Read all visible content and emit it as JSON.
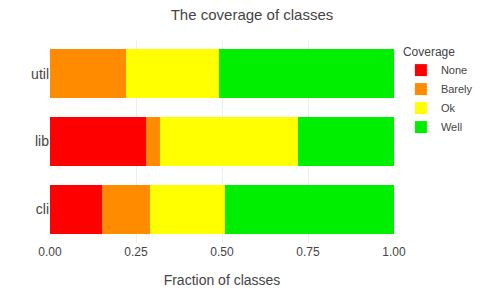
{
  "chart_data": {
    "type": "bar",
    "orientation": "horizontal",
    "stacked": true,
    "title": "The coverage of classes",
    "xlabel": "Fraction of classes",
    "legend_title": "Coverage",
    "categories": [
      "cli",
      "lib",
      "util"
    ],
    "series": [
      {
        "name": "None",
        "color": "#FF0000",
        "values": [
          0.15,
          0.28,
          0.0
        ]
      },
      {
        "name": "Barely",
        "color": "#FF8C00",
        "values": [
          0.14,
          0.04,
          0.22
        ]
      },
      {
        "name": "Ok",
        "color": "#FFFF00",
        "values": [
          0.22,
          0.4,
          0.27
        ]
      },
      {
        "name": "Well",
        "color": "#00EE00",
        "values": [
          0.49,
          0.28,
          0.51
        ]
      }
    ],
    "xlim": [
      0,
      1
    ],
    "xticks": [
      {
        "value": 0,
        "label": "0.00"
      },
      {
        "value": 0.25,
        "label": "0.25"
      },
      {
        "value": 0.5,
        "label": "0.50"
      },
      {
        "value": 0.75,
        "label": "0.75"
      },
      {
        "value": 1,
        "label": "1.00"
      }
    ],
    "grid": true,
    "legend": "right"
  }
}
